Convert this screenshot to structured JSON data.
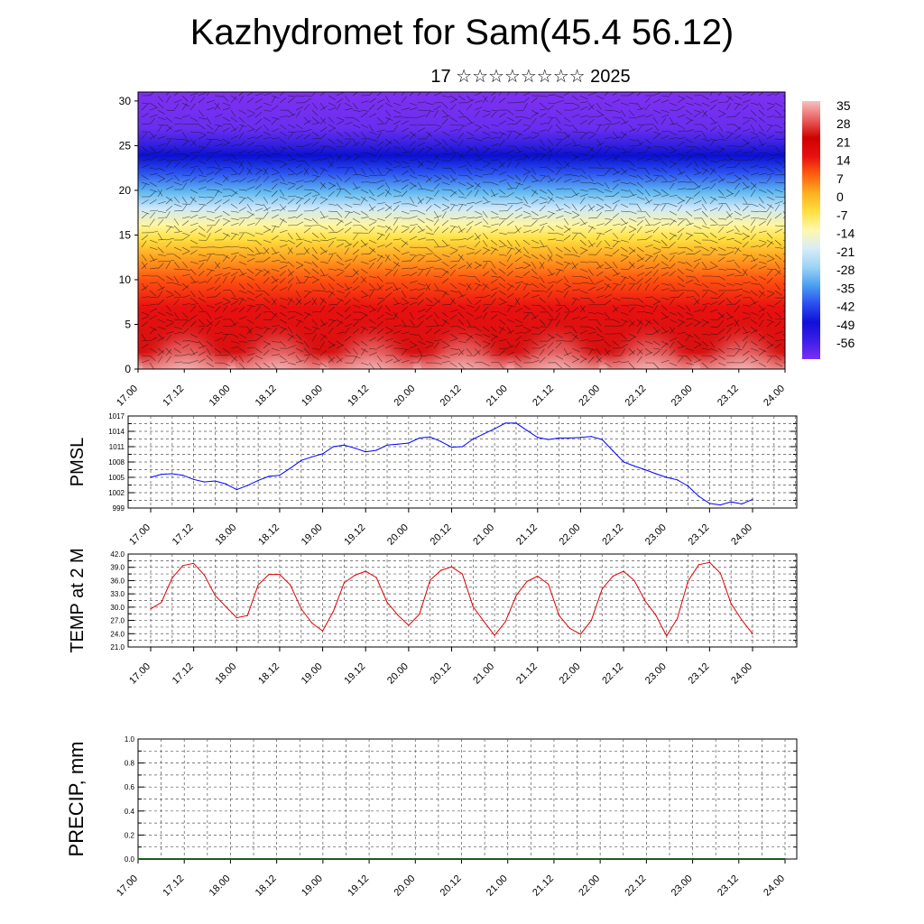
{
  "header": {
    "title": "Kazhydromet for Sam(45.4 56.12)",
    "subtitle": "17 ☆☆☆☆☆☆☆☆ 2025"
  },
  "colors": {
    "pmsl_line": "#0000ff",
    "temp_line": "#e00000",
    "precip_line": "#1a5c1a",
    "grid": "#666666",
    "colormap": [
      "#7b2ff0",
      "#3b1fe8",
      "#1010d8",
      "#2a4ff0",
      "#4aa0f0",
      "#9dd4f5",
      "#d8ecf8",
      "#fff8b0",
      "#ffe040",
      "#ffb020",
      "#ff6010",
      "#e81010",
      "#d00000",
      "#e86060",
      "#f8c0c0"
    ]
  },
  "chart_data": [
    {
      "type": "heatmap",
      "title": "",
      "xlabel": "",
      "ylabel": "",
      "ylim": [
        0,
        31
      ],
      "y_ticks": [
        "0",
        "5",
        "10",
        "15",
        "20",
        "25",
        "30"
      ],
      "x_ticks": [
        "17.00",
        "17.12",
        "18.00",
        "18.12",
        "19.00",
        "19.12",
        "20.00",
        "20.12",
        "21.00",
        "21.12",
        "22.00",
        "22.12",
        "23.00",
        "23.12",
        "24.00"
      ],
      "colorbar_labels": [
        "35",
        "28",
        "21",
        "14",
        "7",
        "0",
        "-7",
        "-14",
        "-21",
        "-28",
        "-35",
        "-42",
        "-49",
        "-56"
      ],
      "note_overlay": "wind barbs"
    },
    {
      "type": "line",
      "ylabel": "PMSL",
      "ylim": [
        999,
        1017
      ],
      "y_ticks": [
        "999",
        "1002",
        "1005",
        "1008",
        "1011",
        "1014",
        "1017"
      ],
      "x_ticks": [
        "17.00",
        "17.12",
        "18.00",
        "18.12",
        "19.00",
        "19.12",
        "20.00",
        "20.12",
        "21.00",
        "21.12",
        "22.00",
        "22.12",
        "23.00",
        "23.12",
        "24.00"
      ],
      "x": [
        0,
        3,
        6,
        9,
        12,
        15,
        18,
        21,
        24,
        27,
        30,
        33,
        36,
        39,
        42,
        45,
        48,
        51,
        54,
        57,
        60,
        63,
        66,
        69,
        72,
        75,
        78,
        81,
        84,
        87,
        90,
        93,
        96,
        99,
        102,
        105,
        108,
        111,
        114,
        117,
        120,
        123,
        126,
        129,
        132,
        135,
        138,
        141,
        144,
        147,
        150,
        153,
        156,
        159,
        162,
        165,
        168
      ],
      "series": [
        {
          "values": [
            1005.0,
            1005.6,
            1005.7,
            1005.4,
            1004.6,
            1004.1,
            1004.3,
            1003.7,
            1002.6,
            1003.4,
            1004.4,
            1005.2,
            1005.4,
            1006.8,
            1008.3,
            1009.0,
            1009.6,
            1011.0,
            1011.3,
            1010.7,
            1010.0,
            1010.3,
            1011.3,
            1011.5,
            1011.7,
            1012.7,
            1012.9,
            1012.0,
            1010.9,
            1011.0,
            1012.5,
            1013.5,
            1014.5,
            1015.6,
            1015.6,
            1014.2,
            1012.8,
            1012.4,
            1012.7,
            1012.7,
            1012.8,
            1013.0,
            1012.4,
            1010.2,
            1008.0,
            1007.2,
            1006.5,
            1005.7,
            1005.0,
            1004.5,
            1003.3,
            1001.3,
            999.9,
            999.6,
            1000.2,
            999.8,
            1000.7
          ]
        }
      ]
    },
    {
      "type": "line",
      "ylabel": "TEMP at 2 M",
      "ylim": [
        21,
        42
      ],
      "y_ticks": [
        "21.0",
        "24.0",
        "27.0",
        "30.0",
        "33.0",
        "36.0",
        "39.0",
        "42.0"
      ],
      "x_ticks": [
        "17.00",
        "17.12",
        "18.00",
        "18.12",
        "19.00",
        "19.12",
        "20.00",
        "20.12",
        "21.00",
        "21.12",
        "22.00",
        "22.12",
        "23.00",
        "23.12",
        "24.00"
      ],
      "x": [
        0,
        3,
        6,
        9,
        12,
        15,
        18,
        21,
        24,
        27,
        30,
        33,
        36,
        39,
        42,
        45,
        48,
        51,
        54,
        57,
        60,
        63,
        66,
        69,
        72,
        75,
        78,
        81,
        84,
        87,
        90,
        93,
        96,
        99,
        102,
        105,
        108,
        111,
        114,
        117,
        120,
        123,
        126,
        129,
        132,
        135,
        138,
        141,
        144,
        147,
        150,
        153,
        156,
        159,
        162,
        165,
        168
      ],
      "series": [
        {
          "values": [
            29.6,
            31.1,
            36.6,
            39.4,
            39.9,
            37.2,
            32.6,
            30.1,
            27.6,
            28.1,
            35.0,
            37.4,
            37.4,
            35.0,
            29.6,
            26.4,
            24.6,
            29.1,
            35.5,
            37.2,
            38.1,
            36.7,
            31.1,
            28.2,
            25.9,
            28.4,
            36.1,
            38.3,
            39.1,
            37.5,
            30.1,
            26.8,
            23.6,
            26.7,
            32.6,
            35.8,
            37.0,
            35.2,
            28.1,
            25.2,
            23.9,
            27.0,
            34.1,
            37.0,
            38.1,
            36.0,
            31.4,
            28.2,
            23.5,
            27.4,
            35.9,
            39.6,
            40.1,
            37.7,
            30.8,
            27.1,
            24.0
          ]
        }
      ]
    },
    {
      "type": "line",
      "ylabel": "PRECIP, mm",
      "ylim": [
        0,
        1
      ],
      "y_ticks": [
        "0.0",
        "0.2",
        "0.4",
        "0.6",
        "0.8",
        "1.0"
      ],
      "x_ticks": [
        "17.00",
        "17.12",
        "18.00",
        "18.12",
        "19.00",
        "19.12",
        "20.00",
        "20.12",
        "21.00",
        "21.12",
        "22.00",
        "22.12",
        "23.00",
        "23.12",
        "24.00"
      ],
      "x": [
        0,
        3,
        6,
        9,
        12,
        15,
        18,
        21,
        24,
        27,
        30,
        33,
        36,
        39,
        42,
        45,
        48,
        51,
        54,
        57,
        60,
        63,
        66,
        69,
        72,
        75,
        78,
        81,
        84,
        87,
        90,
        93,
        96,
        99,
        102,
        105,
        108,
        111,
        114,
        117,
        120,
        123,
        126,
        129,
        132,
        135,
        138,
        141,
        144,
        147,
        150,
        153,
        156,
        159,
        162,
        165,
        168
      ],
      "series": [
        {
          "values": [
            0,
            0,
            0,
            0,
            0,
            0,
            0,
            0,
            0,
            0,
            0,
            0,
            0,
            0,
            0,
            0,
            0,
            0,
            0,
            0,
            0,
            0,
            0,
            0,
            0,
            0,
            0,
            0,
            0,
            0,
            0,
            0,
            0,
            0,
            0,
            0,
            0,
            0,
            0,
            0,
            0,
            0,
            0,
            0,
            0,
            0,
            0,
            0,
            0,
            0,
            0,
            0,
            0,
            0,
            0,
            0,
            0
          ]
        }
      ]
    }
  ]
}
